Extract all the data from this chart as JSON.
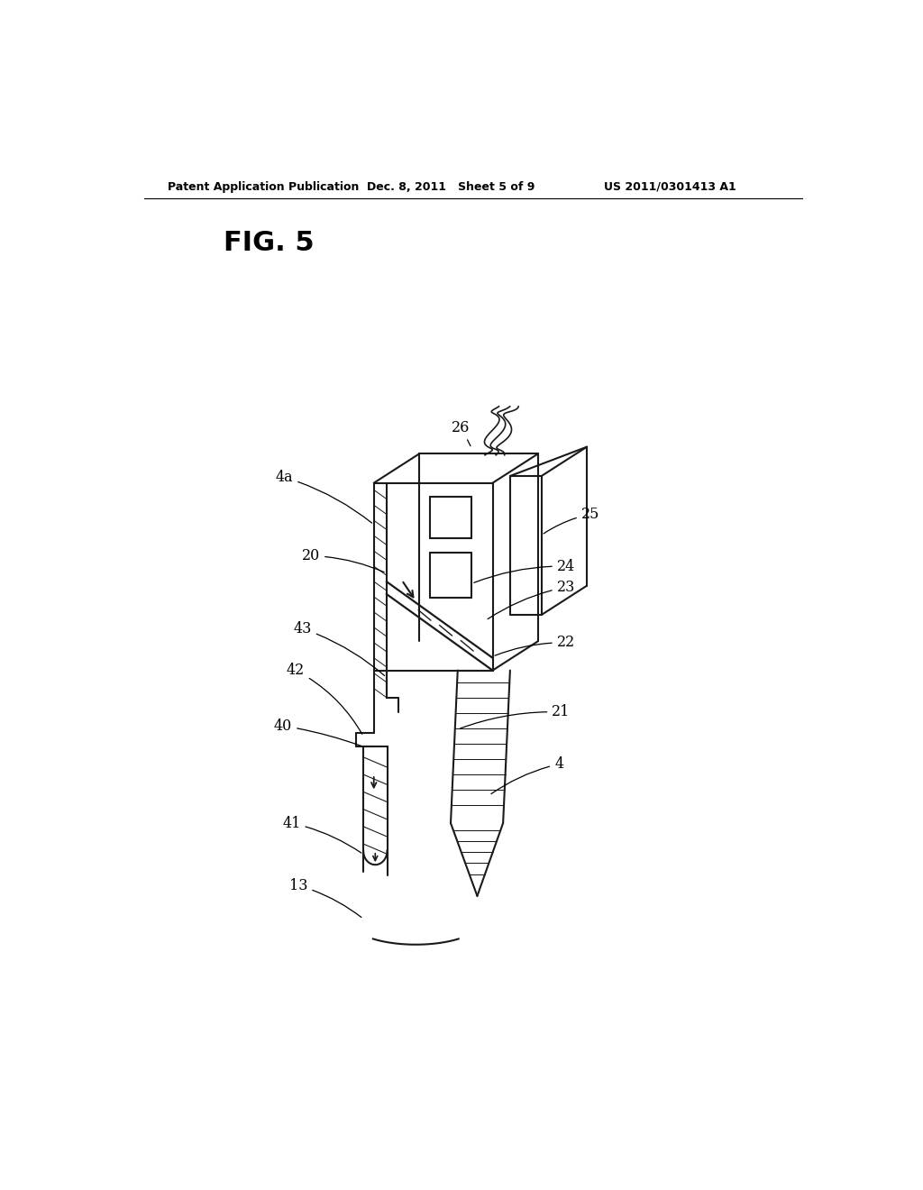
{
  "bg_color": "#ffffff",
  "header_left": "Patent Application Publication",
  "header_mid": "Dec. 8, 2011   Sheet 5 of 9",
  "header_right": "US 2011/0301413 A1",
  "fig_label": "FIG. 5",
  "line_color": "#1a1a1a",
  "lw": 1.5
}
